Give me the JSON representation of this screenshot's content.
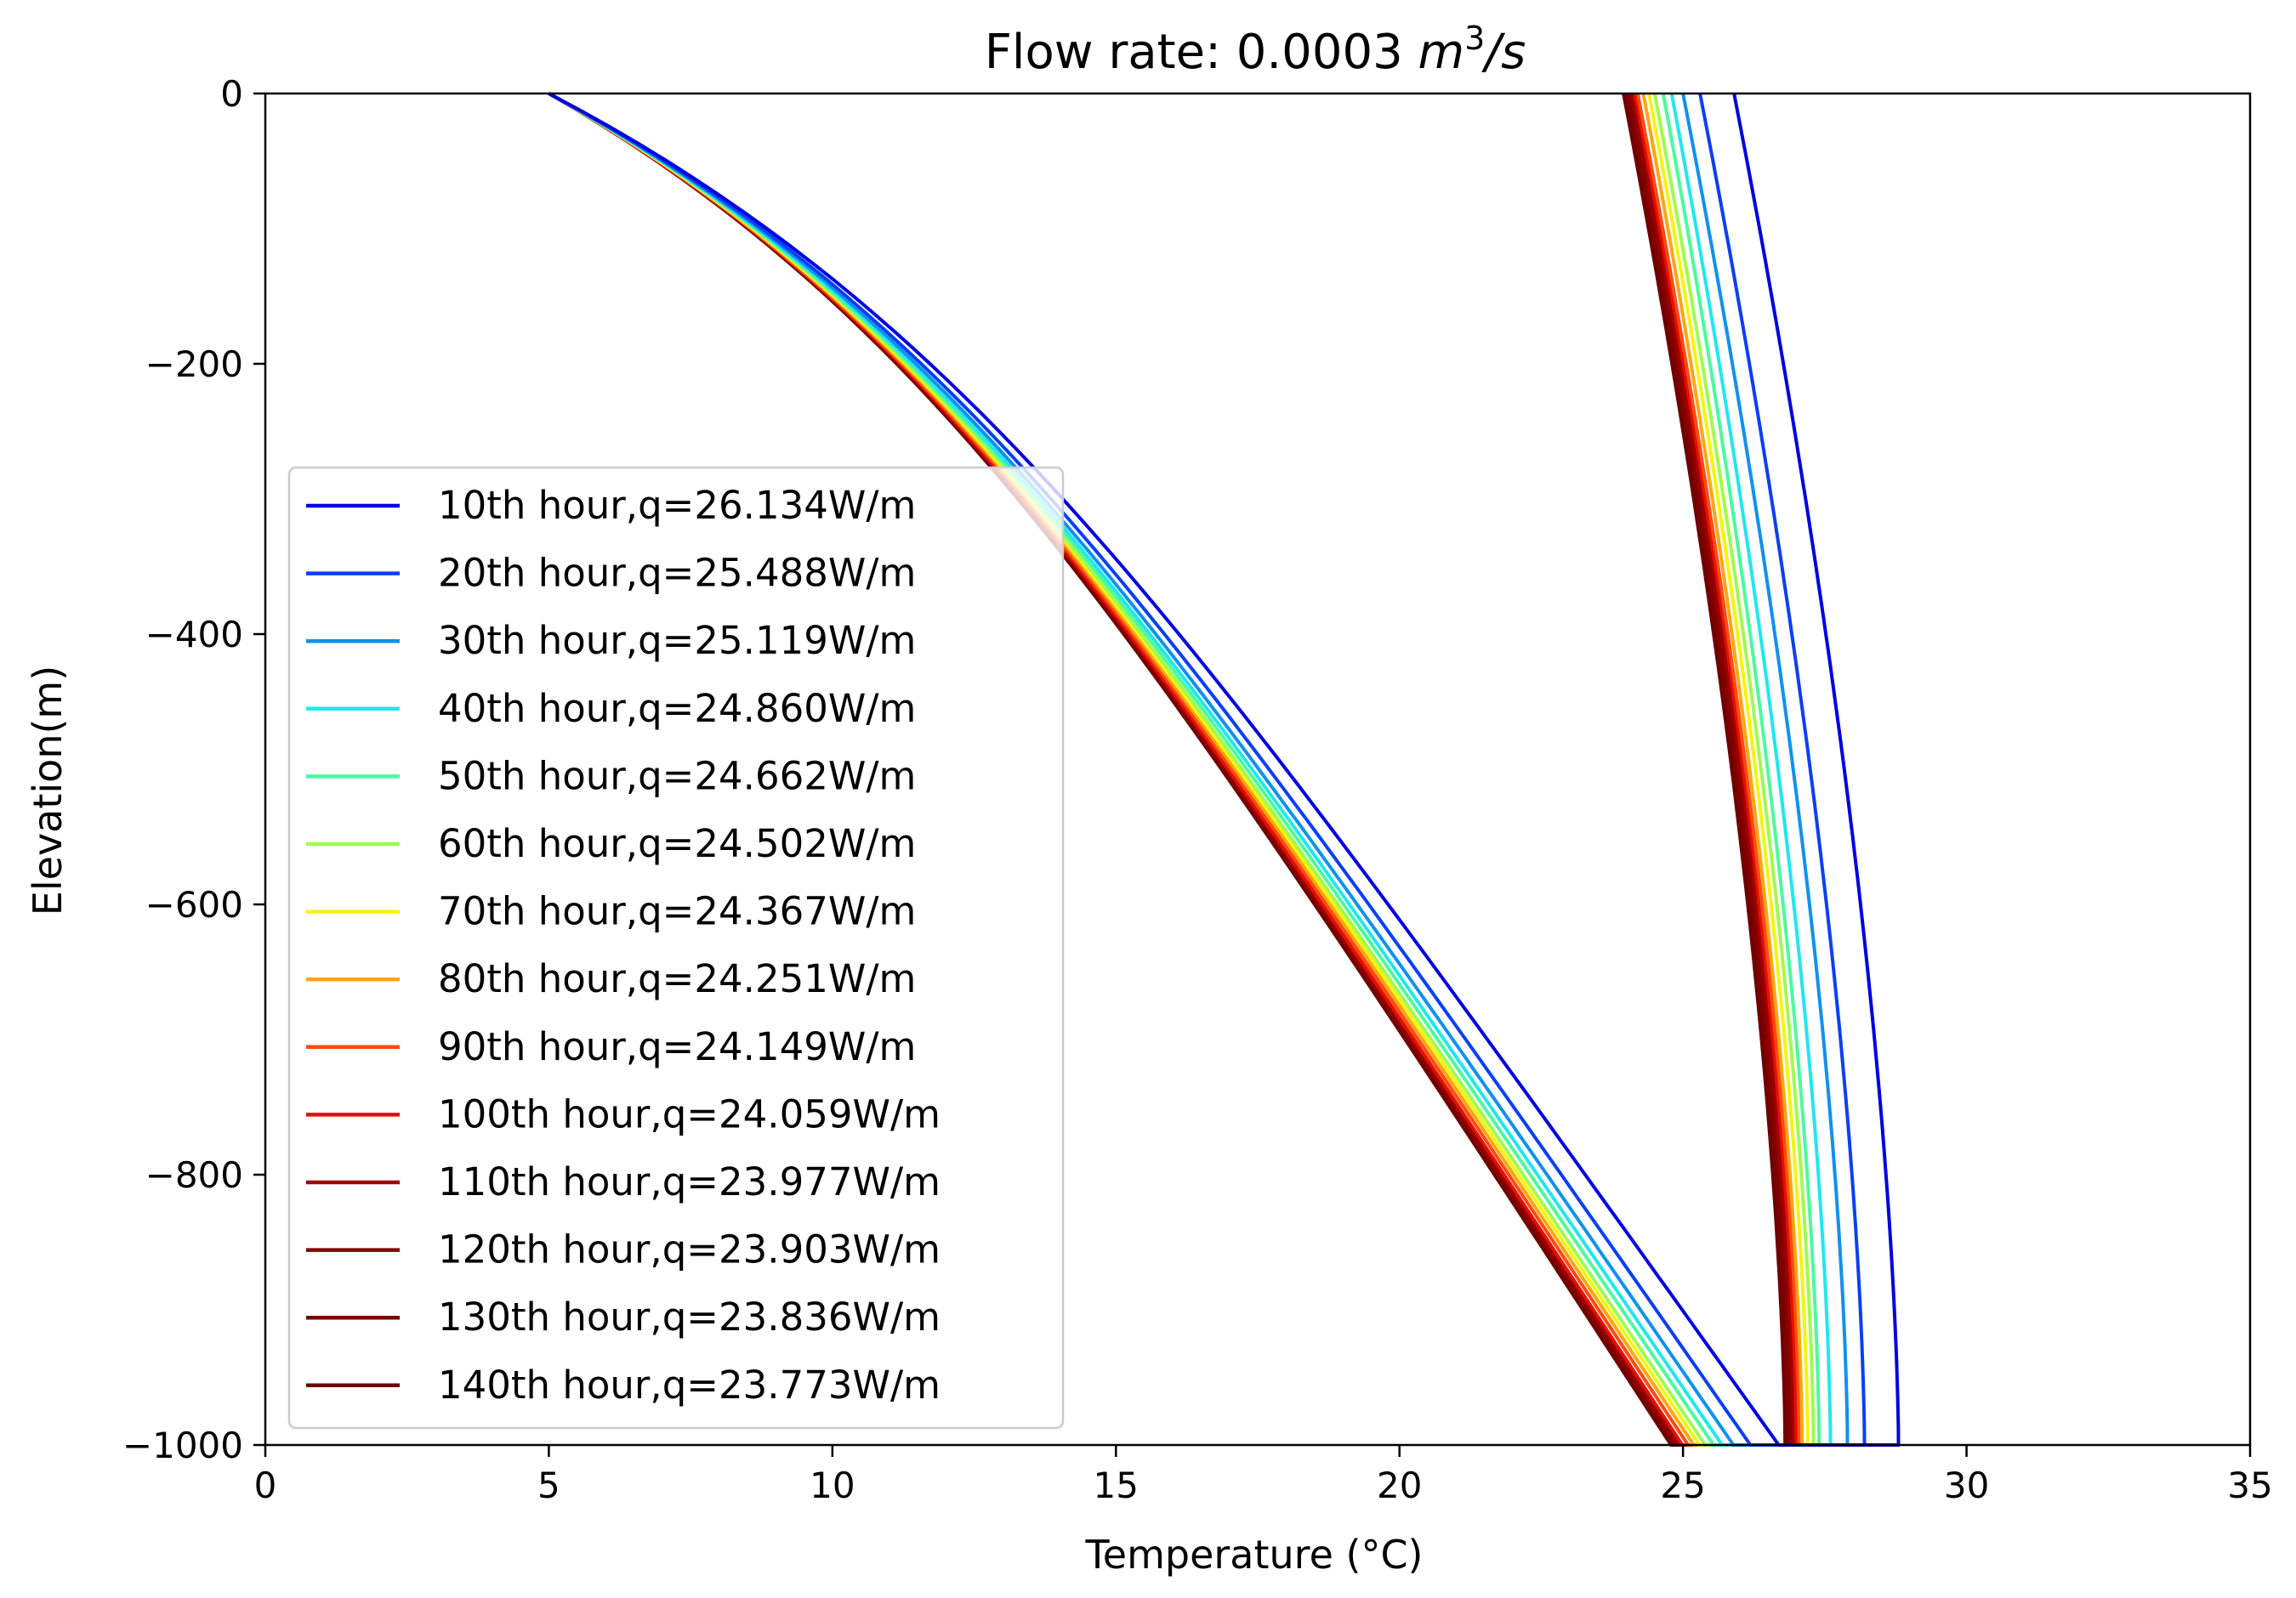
{
  "chart_data": {
    "type": "line",
    "title": "Flow rate: 0.0003 m³/s",
    "title_prefix": "Flow rate: 0.0003 ",
    "title_unit": "m",
    "title_unit_exp": "3",
    "title_unit_tail": "/s",
    "xlabel": "Temperature (°C)",
    "ylabel": "Elevation(m)",
    "xlim": [
      0,
      35
    ],
    "ylim": [
      -1000,
      0
    ],
    "xticks": [
      0,
      5,
      10,
      15,
      20,
      25,
      30,
      35
    ],
    "yticks": [
      0,
      -200,
      -400,
      -600,
      -800,
      -1000
    ],
    "ytick_labels": [
      "0",
      "−200",
      "−400",
      "−600",
      "−800",
      "−1000"
    ],
    "grid": false,
    "legend_position": "center-left",
    "inlet_temperature": 5.0,
    "series": [
      {
        "name": "10th hour,q=26.134W/m",
        "color": "#0000e0",
        "bottom_temp": 28.8,
        "inflow_bottom": 26.7,
        "outflow_top": 25.9
      },
      {
        "name": "20th hour,q=25.488W/m",
        "color": "#0a3ff5",
        "bottom_temp": 28.2,
        "inflow_bottom": 26.2,
        "outflow_top": 25.3
      },
      {
        "name": "30th hour,q=25.119W/m",
        "color": "#1191ec",
        "bottom_temp": 27.9,
        "inflow_bottom": 25.9,
        "outflow_top": 25.0
      },
      {
        "name": "40th hour,q=24.860W/m",
        "color": "#22e6f0",
        "bottom_temp": 27.6,
        "inflow_bottom": 25.7,
        "outflow_top": 24.8
      },
      {
        "name": "50th hour,q=24.662W/m",
        "color": "#4dfa9f",
        "bottom_temp": 27.4,
        "inflow_bottom": 25.55,
        "outflow_top": 24.65
      },
      {
        "name": "60th hour,q=24.502W/m",
        "color": "#a0fb50",
        "bottom_temp": 27.3,
        "inflow_bottom": 25.4,
        "outflow_top": 24.5
      },
      {
        "name": "70th hour,q=24.367W/m",
        "color": "#f4f50e",
        "bottom_temp": 27.2,
        "inflow_bottom": 25.3,
        "outflow_top": 24.4
      },
      {
        "name": "80th hour,q=24.251W/m",
        "color": "#ffa514",
        "bottom_temp": 27.1,
        "inflow_bottom": 25.2,
        "outflow_top": 24.3
      },
      {
        "name": "90th hour,q=24.149W/m",
        "color": "#ff4a0f",
        "bottom_temp": 27.05,
        "inflow_bottom": 25.1,
        "outflow_top": 24.2
      },
      {
        "name": "100th hour,q=24.059W/m",
        "color": "#e31005",
        "bottom_temp": 27.0,
        "inflow_bottom": 25.0,
        "outflow_top": 24.15
      },
      {
        "name": "110th hour,q=23.977W/m",
        "color": "#a00000",
        "bottom_temp": 26.95,
        "inflow_bottom": 24.95,
        "outflow_top": 24.1
      },
      {
        "name": "120th hour,q=23.903W/m",
        "color": "#880000",
        "bottom_temp": 26.9,
        "inflow_bottom": 24.9,
        "outflow_top": 24.05
      },
      {
        "name": "130th hour,q=23.836W/m",
        "color": "#7a0000",
        "bottom_temp": 26.85,
        "inflow_bottom": 24.85,
        "outflow_top": 24.0
      },
      {
        "name": "140th hour,q=23.773W/m",
        "color": "#6e0000",
        "bottom_temp": 26.8,
        "inflow_bottom": 24.8,
        "outflow_top": 23.95
      }
    ]
  }
}
